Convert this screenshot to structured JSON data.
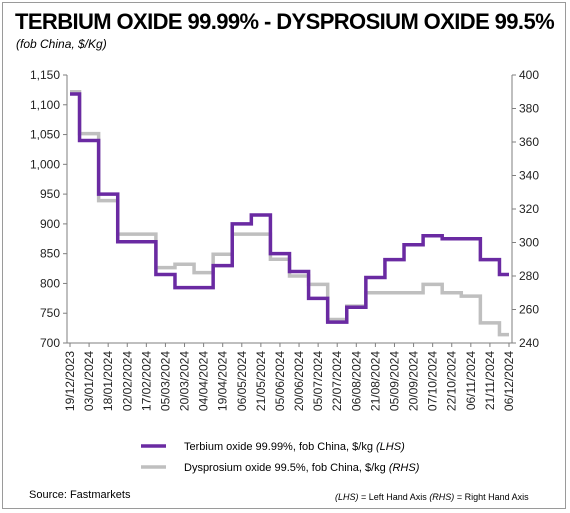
{
  "chart_data": {
    "type": "line",
    "title": "TERBIUM OXIDE 99.99% - DYSPROSIUM OXIDE 99.5%",
    "subtitle": "(fob China, $/Kg)",
    "x": [
      "19/12/2023",
      "03/01/2024",
      "18/01/2024",
      "02/02/2024",
      "17/02/2024",
      "05/03/2024",
      "20/03/2024",
      "04/04/2024",
      "19/04/2024",
      "06/05/2024",
      "21/05/2024",
      "05/06/2024",
      "20/06/2024",
      "05/07/2024",
      "22/07/2024",
      "06/08/2024",
      "21/08/2024",
      "05/09/2024",
      "20/09/2024",
      "07/10/2024",
      "22/10/2024",
      "06/11/2024",
      "21/11/2024",
      "06/12/2024"
    ],
    "y_left_ticks": [
      "700",
      "750",
      "800",
      "850",
      "900",
      "950",
      "1,000",
      "1,050",
      "1,100",
      "1,150"
    ],
    "y_right_ticks": [
      "240",
      "260",
      "280",
      "300",
      "320",
      "340",
      "360",
      "380",
      "400"
    ],
    "ylim_left": [
      700,
      1150
    ],
    "ylim_right": [
      240,
      400
    ],
    "grid": false,
    "legend_position": "bottom",
    "series": [
      {
        "name": "Terbium oxide 99.99%, fob China, $/kg",
        "axis_note": "(LHS)",
        "axis": "left",
        "color": "#6a2aa2",
        "values": [
          1118,
          1040,
          950,
          870,
          870,
          815,
          793,
          793,
          830,
          900,
          915,
          850,
          820,
          775,
          735,
          760,
          810,
          840,
          865,
          880,
          875,
          875,
          840,
          815
        ]
      },
      {
        "name": "Dysprosium oxide 99.5%, fob China, $/kg",
        "axis_note": "(RHS)",
        "axis": "right",
        "color": "#bfbfbf",
        "values": [
          390,
          365,
          325,
          305,
          305,
          285,
          287,
          282,
          293,
          305,
          305,
          290,
          280,
          275,
          254,
          262,
          270,
          270,
          270,
          275,
          270,
          268,
          252,
          245
        ]
      }
    ]
  },
  "footer": {
    "source": "Source: Fastmarkets",
    "axis_note": {
      "lhs": "(LHS)",
      "lhs_text": " = Left Hand Axis  ",
      "rhs": "(RHS)",
      "rhs_text": " = Right Hand Axis"
    }
  }
}
